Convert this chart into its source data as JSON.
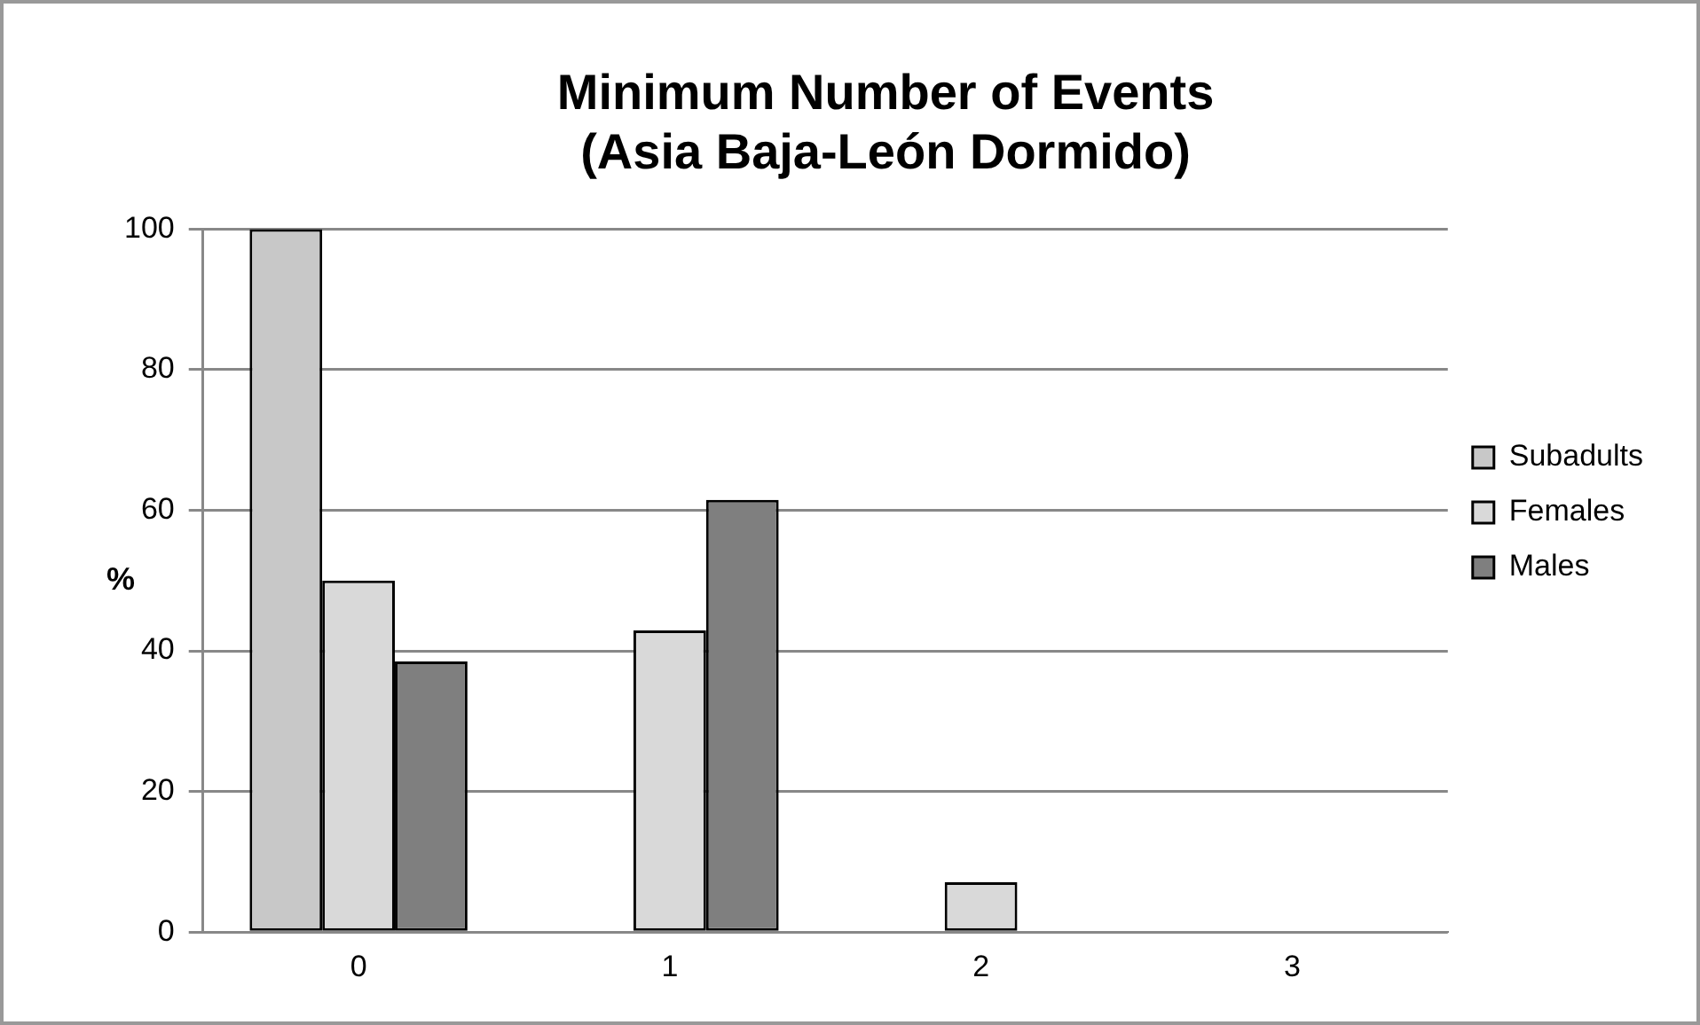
{
  "chart_data": {
    "type": "bar",
    "title": "Minimum Number of Events\n(Asia Baja-León Dormido)",
    "ylabel": "%",
    "categories": [
      "0",
      "1",
      "2",
      "3"
    ],
    "series": [
      {
        "name": "Subadults",
        "color": "#c8c8c8",
        "values": [
          100,
          0,
          0,
          0
        ]
      },
      {
        "name": "Females",
        "color": "#d9d9d9",
        "values": [
          50,
          42.9,
          7.1,
          0
        ]
      },
      {
        "name": "Males",
        "color": "#7f7f7f",
        "values": [
          38.5,
          61.5,
          0,
          0
        ]
      }
    ],
    "ylim": [
      0,
      100
    ],
    "yticks": [
      0,
      20,
      40,
      60,
      80,
      100
    ],
    "grid": "y",
    "legend": "right"
  }
}
